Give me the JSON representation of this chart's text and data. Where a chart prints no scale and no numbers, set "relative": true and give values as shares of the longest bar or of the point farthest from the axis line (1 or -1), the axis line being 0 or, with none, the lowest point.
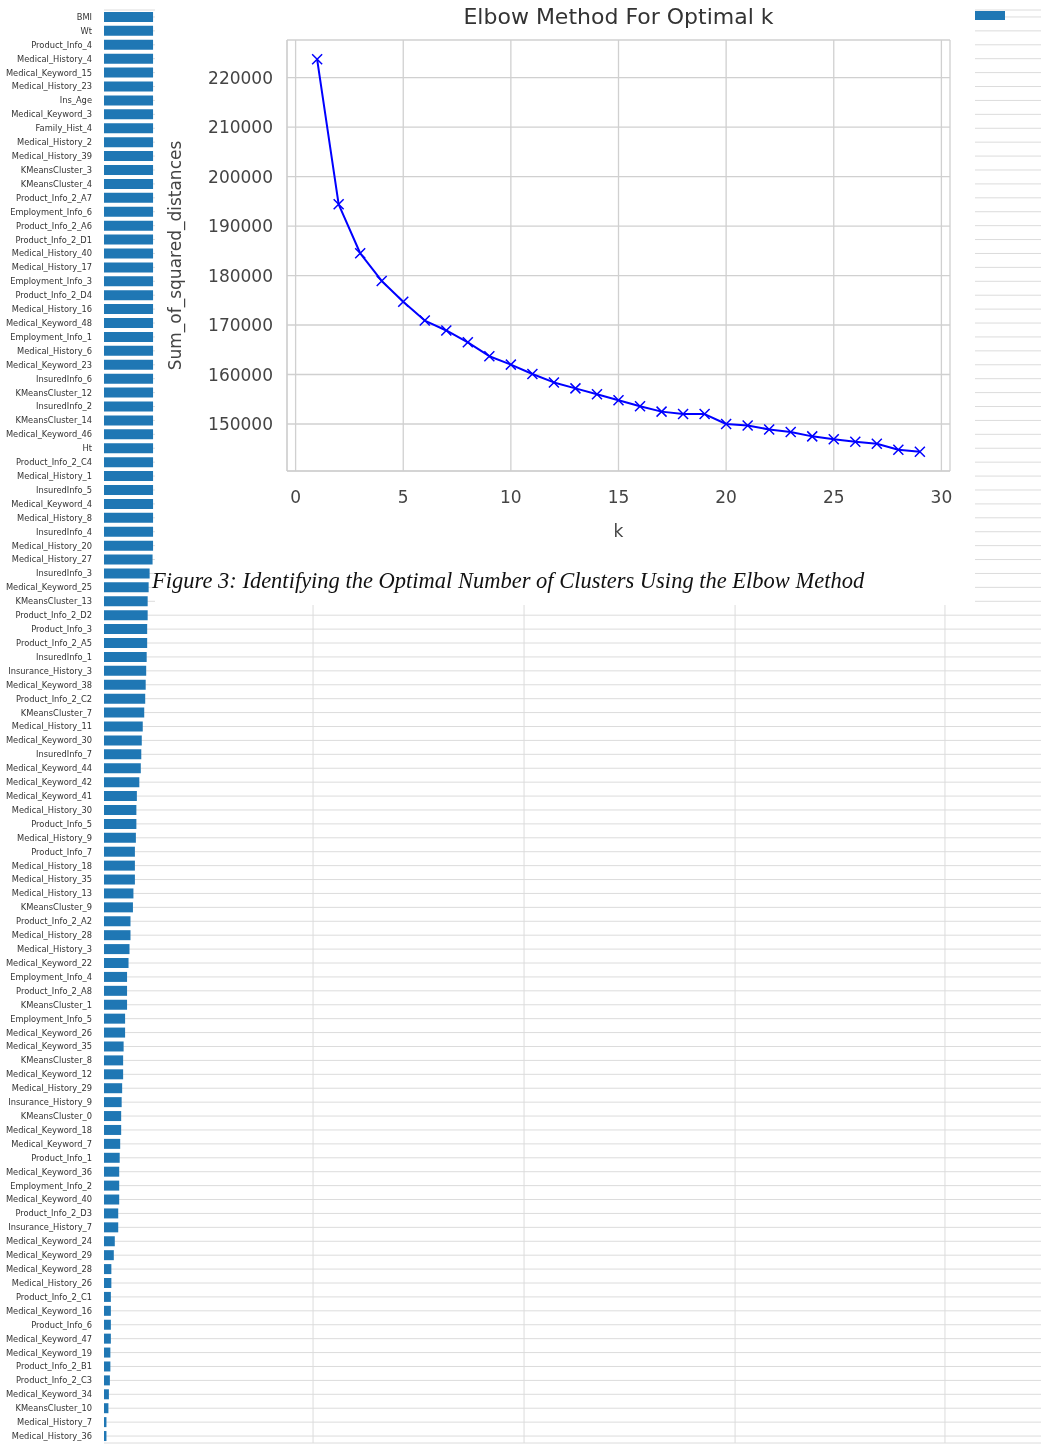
{
  "chart_data": [
    {
      "type": "bar",
      "orientation": "horizontal",
      "relative": true,
      "grid": true,
      "categories": [
        "BMI",
        "Wt",
        "Product_Info_4",
        "Medical_History_4",
        "Medical_Keyword_15",
        "Medical_History_23",
        "Ins_Age",
        "Medical_Keyword_3",
        "Family_Hist_4",
        "Medical_History_2",
        "Medical_History_39",
        "KMeansCluster_3",
        "KMeansCluster_4",
        "Product_Info_2_A7",
        "Employment_Info_6",
        "Product_Info_2_A6",
        "Product_Info_2_D1",
        "Medical_History_40",
        "Medical_History_17",
        "Employment_Info_3",
        "Product_Info_2_D4",
        "Medical_History_16",
        "Medical_Keyword_48",
        "Employment_Info_1",
        "Medical_History_6",
        "Medical_Keyword_23",
        "InsuredInfo_6",
        "KMeansCluster_12",
        "InsuredInfo_2",
        "KMeansCluster_14",
        "Medical_Keyword_46",
        "Ht",
        "Product_Info_2_C4",
        "Medical_History_1",
        "InsuredInfo_5",
        "Medical_Keyword_4",
        "Medical_History_8",
        "InsuredInfo_4",
        "Medical_History_20",
        "Medical_History_27",
        "InsuredInfo_3",
        "Medical_Keyword_25",
        "KMeansCluster_13",
        "Product_Info_2_D2",
        "Product_Info_3",
        "Product_Info_2_A5",
        "InsuredInfo_1",
        "Insurance_History_3",
        "Medical_Keyword_38",
        "Product_Info_2_C2",
        "KMeansCluster_7",
        "Medical_History_11",
        "Medical_Keyword_30",
        "InsuredInfo_7",
        "Medical_Keyword_44",
        "Medical_Keyword_42",
        "Medical_Keyword_41",
        "Medical_History_30",
        "Product_Info_5",
        "Medical_History_9",
        "Product_Info_7",
        "Medical_History_18",
        "Medical_History_35",
        "Medical_History_13",
        "KMeansCluster_9",
        "Product_Info_2_A2",
        "Medical_History_28",
        "Medical_History_3",
        "Medical_Keyword_22",
        "Employment_Info_4",
        "Product_Info_2_A8",
        "KMeansCluster_1",
        "Employment_Info_5",
        "Medical_Keyword_26",
        "Medical_Keyword_35",
        "KMeansCluster_8",
        "Medical_Keyword_12",
        "Medical_History_29",
        "Insurance_History_9",
        "KMeansCluster_0",
        "Medical_Keyword_18",
        "Medical_Keyword_7",
        "Product_Info_1",
        "Medical_Keyword_36",
        "Employment_Info_2",
        "Medical_Keyword_40",
        "Product_Info_2_D3",
        "Insurance_History_7",
        "Medical_Keyword_24",
        "Medical_Keyword_29",
        "Medical_Keyword_28",
        "Medical_History_26",
        "Product_Info_2_C1",
        "Medical_Keyword_16",
        "Product_Info_6",
        "Medical_Keyword_47",
        "Medical_Keyword_19",
        "Product_Info_2_B1",
        "Product_Info_2_C3",
        "Medical_Keyword_34",
        "KMeansCluster_10",
        "Medical_History_7",
        "Medical_History_36"
      ],
      "series": [
        {
          "color": "#1f77b4",
          "values": [
            1,
            1,
            1,
            1,
            1,
            1,
            1,
            1,
            1,
            1,
            1,
            1,
            1,
            1,
            1,
            1,
            1,
            1,
            1,
            1,
            1,
            1,
            1,
            1,
            1,
            1,
            1,
            1,
            1,
            1,
            1,
            1,
            1,
            1,
            1,
            1,
            1,
            1,
            1,
            0.99,
            0.93,
            0.91,
            0.89,
            0.89,
            0.88,
            0.88,
            0.87,
            0.86,
            0.85,
            0.84,
            0.82,
            0.79,
            0.77,
            0.76,
            0.75,
            0.72,
            0.67,
            0.66,
            0.66,
            0.65,
            0.63,
            0.63,
            0.63,
            0.6,
            0.59,
            0.54,
            0.54,
            0.52,
            0.5,
            0.47,
            0.47,
            0.47,
            0.43,
            0.43,
            0.4,
            0.39,
            0.39,
            0.37,
            0.36,
            0.35,
            0.35,
            0.33,
            0.32,
            0.31,
            0.31,
            0.31,
            0.29,
            0.29,
            0.22,
            0.2,
            0.15,
            0.15,
            0.14,
            0.14,
            0.14,
            0.14,
            0.13,
            0.13,
            0.12,
            0.1,
            0.09,
            0.05,
            0.05
          ]
        }
      ]
    },
    {
      "type": "line",
      "title": "Elbow Method For Optimal k",
      "xlabel": "k",
      "ylabel": "Sum_of_squared_distances",
      "grid": true,
      "marker": "cross",
      "line_style": "solid",
      "x": [
        1,
        2,
        3,
        4,
        5,
        6,
        7,
        8,
        9,
        10,
        11,
        12,
        13,
        14,
        15,
        16,
        17,
        18,
        19,
        20,
        21,
        22,
        23,
        24,
        25,
        26,
        27,
        28,
        29
      ],
      "xlim": [
        -0.4,
        30.4
      ],
      "xticks": [
        0,
        5,
        10,
        15,
        20,
        25,
        30
      ],
      "ylim": [
        140500,
        227600
      ],
      "yticks": [
        150000,
        160000,
        170000,
        180000,
        190000,
        200000,
        210000,
        220000
      ],
      "series": [
        {
          "color": "#0000ff",
          "values": [
            223700,
            194400,
            184500,
            178900,
            174700,
            170900,
            168900,
            166500,
            163700,
            162000,
            160100,
            158400,
            157200,
            156000,
            154800,
            153600,
            152500,
            152000,
            152000,
            150000,
            149700,
            148900,
            148400,
            147500,
            146900,
            146400,
            146000,
            144800,
            144400
          ]
        }
      ],
      "annotations": [
        "Figure 3: Identifying the Optimal Number of Clusters Using the Elbow Method"
      ]
    }
  ]
}
